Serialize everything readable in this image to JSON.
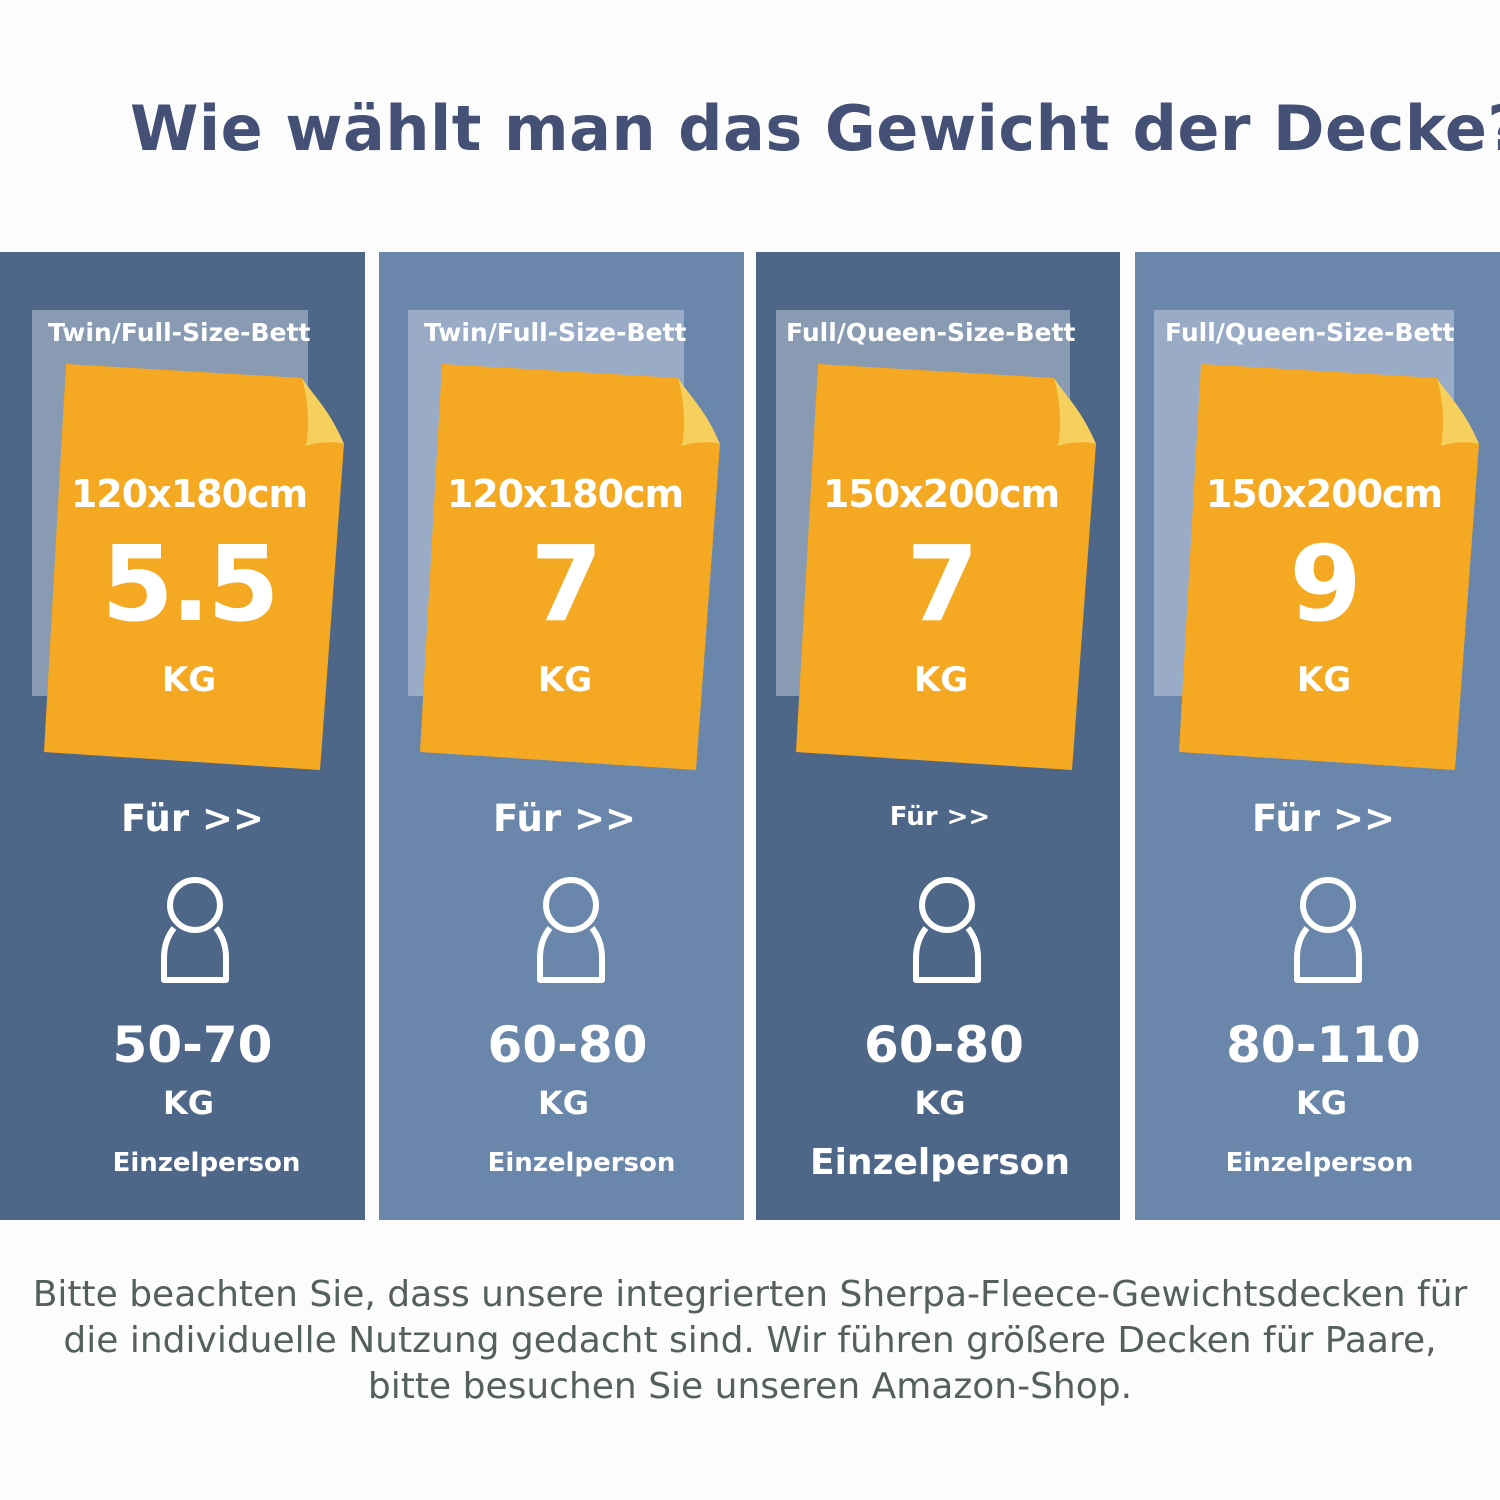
{
  "title": "Wie wählt man das Gewicht der Decke?",
  "colors": {
    "title": "#445075",
    "column_dark": "#4e6788",
    "column_light": "#6a86ab",
    "blanket": "#f5a821",
    "blanket_fold": "#f7cf5c",
    "note_text": "#55605e"
  },
  "cards": [
    {
      "bed_label": "Twin/Full-Size-Bett",
      "size": "120x180cm",
      "weight": "5.5",
      "weight_unit": "KG",
      "for_label": "Für >>",
      "person_icon": "person-icon",
      "body_range": "50-70",
      "body_unit": "KG",
      "audience": "Einzelperson"
    },
    {
      "bed_label": "Twin/Full-Size-Bett",
      "size": "120x180cm",
      "weight": "7",
      "weight_unit": "KG",
      "for_label": "Für >>",
      "person_icon": "person-icon",
      "body_range": "60-80",
      "body_unit": "KG",
      "audience": "Einzelperson"
    },
    {
      "bed_label": "Full/Queen-Size-Bett",
      "size": "150x200cm",
      "weight": "7",
      "weight_unit": "KG",
      "for_label": "Für >>",
      "person_icon": "person-icon",
      "body_range": "60-80",
      "body_unit": "KG",
      "audience": "Einzelperson"
    },
    {
      "bed_label": "Full/Queen-Size-Bett",
      "size": "150x200cm",
      "weight": "9",
      "weight_unit": "KG",
      "for_label": "Für >>",
      "person_icon": "person-icon",
      "body_range": "80-110",
      "body_unit": "KG",
      "audience": "Einzelperson"
    }
  ],
  "note": {
    "line1": "Bitte beachten Sie, dass unsere integrierten Sherpa-Fleece-Gewichtsdecken für",
    "line2": "die individuelle Nutzung gedacht sind. Wir führen größere Decken für Paare,",
    "line3": "bitte besuchen Sie unseren Amazon-Shop."
  }
}
